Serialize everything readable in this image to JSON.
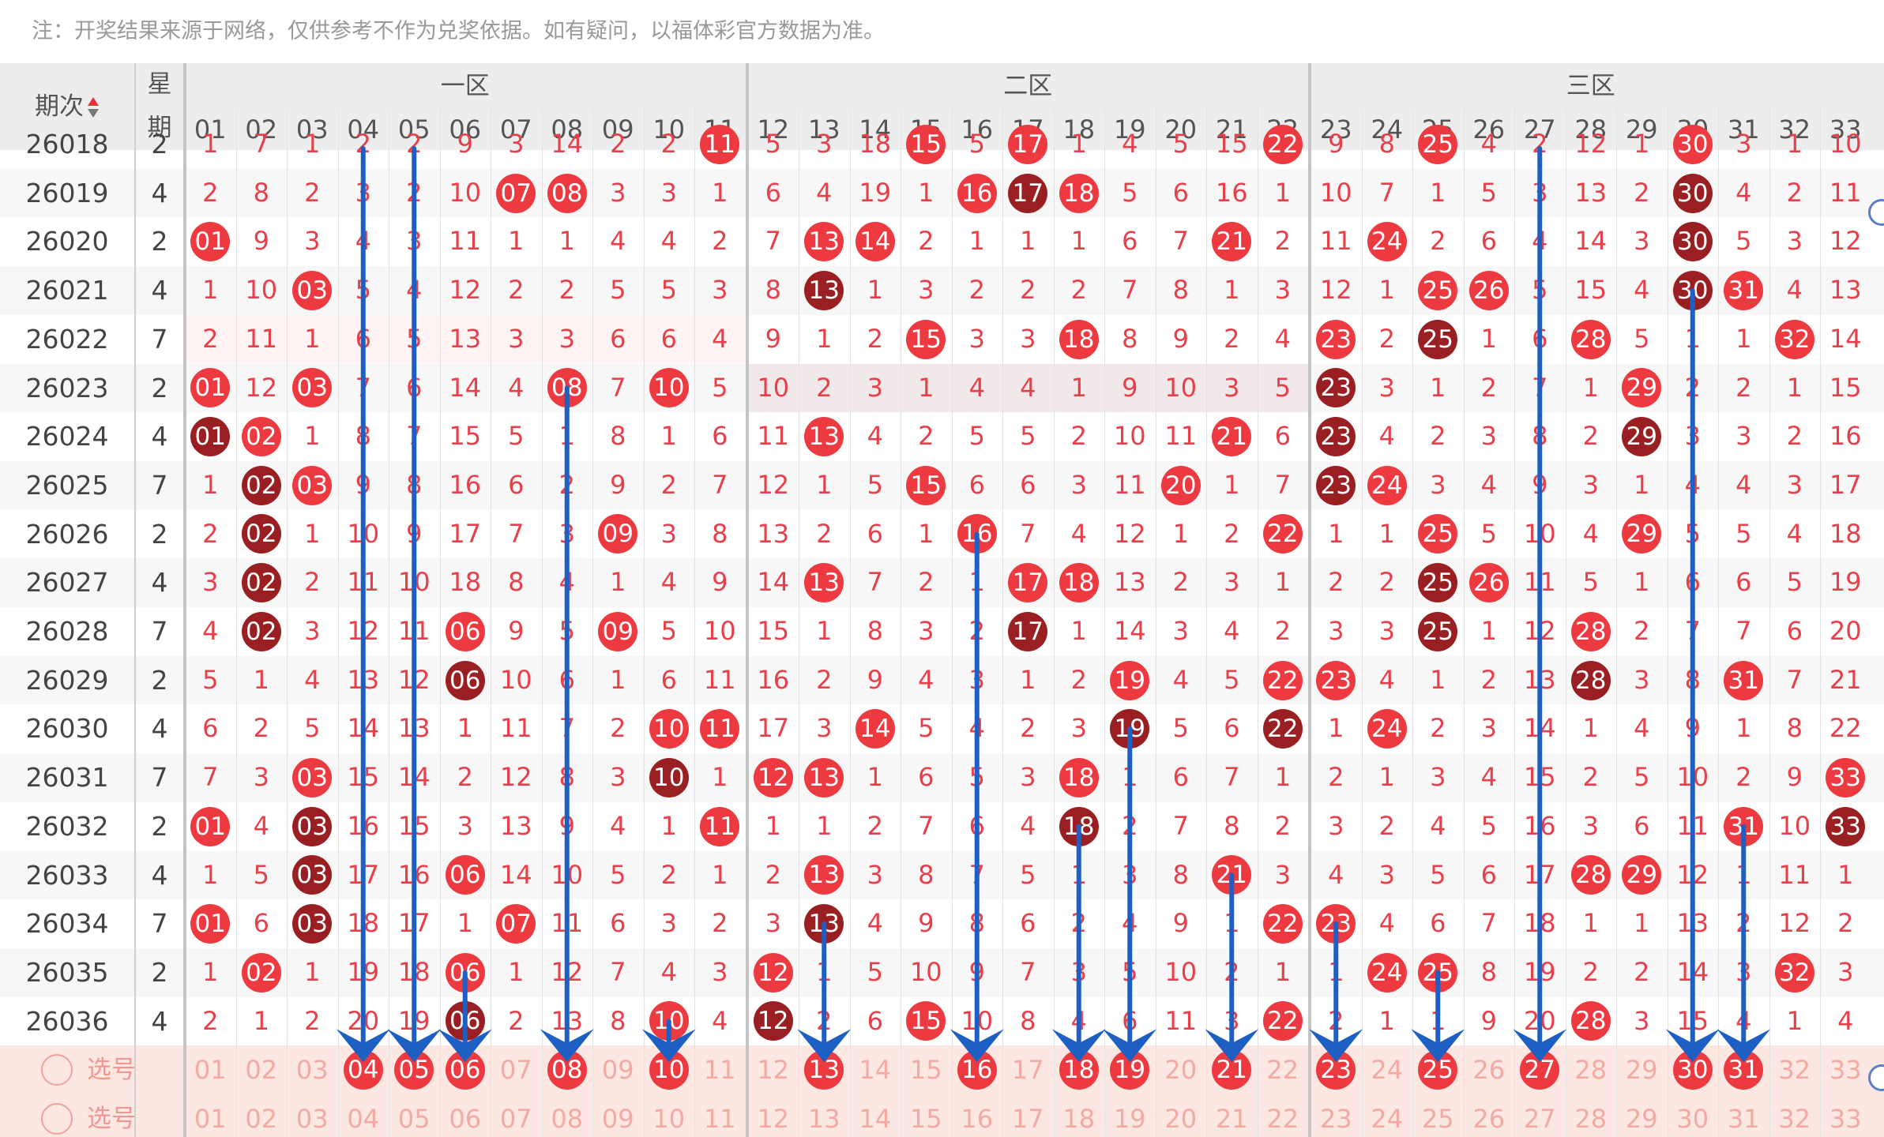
{
  "note": "注：开奖结果来源于网络，仅供参考不作为兑奖依据。如有疑问，以福体彩官方数据为准。",
  "header": {
    "qici_label": "期次",
    "xingqi_label_top": "星",
    "xingqi_label_bottom": "期",
    "zones": [
      "一区",
      "二区",
      "三区"
    ],
    "numbers": [
      "01",
      "02",
      "03",
      "04",
      "05",
      "06",
      "07",
      "08",
      "09",
      "10",
      "11",
      "12",
      "13",
      "14",
      "15",
      "16",
      "17",
      "18",
      "19",
      "20",
      "21",
      "22",
      "23",
      "24",
      "25",
      "26",
      "27",
      "28",
      "29",
      "30",
      "31",
      "32",
      "33"
    ]
  },
  "rows": [
    {
      "qici": "26018",
      "xingqi": "2",
      "cells": [
        "1",
        "7",
        "1",
        "2",
        "2",
        "9",
        "3",
        "14",
        "2",
        "2",
        "11",
        "5",
        "3",
        "18",
        "15",
        "5",
        "17",
        "1",
        "4",
        "5",
        "15",
        "22",
        "9",
        "8",
        "25",
        "4",
        "2",
        "12",
        "1",
        "30",
        "3",
        "1",
        "10"
      ],
      "hits": [
        10,
        14,
        16,
        21,
        24,
        29
      ]
    },
    {
      "qici": "26019",
      "xingqi": "4",
      "cells": [
        "2",
        "8",
        "2",
        "3",
        "2",
        "10",
        "07",
        "08",
        "3",
        "3",
        "1",
        "6",
        "4",
        "19",
        "1",
        "16",
        "17",
        "18",
        "5",
        "6",
        "16",
        "1",
        "10",
        "7",
        "1",
        "5",
        "3",
        "13",
        "2",
        "30",
        "4",
        "2",
        "11"
      ],
      "hits": [
        6,
        7,
        15,
        16,
        17,
        29
      ]
    },
    {
      "qici": "26020",
      "xingqi": "2",
      "cells": [
        "01",
        "9",
        "3",
        "4",
        "3",
        "11",
        "1",
        "1",
        "4",
        "4",
        "2",
        "7",
        "13",
        "14",
        "2",
        "1",
        "1",
        "1",
        "6",
        "7",
        "21",
        "2",
        "11",
        "24",
        "2",
        "6",
        "4",
        "14",
        "3",
        "30",
        "5",
        "3",
        "12"
      ],
      "hits": [
        0,
        12,
        13,
        20,
        23,
        29
      ]
    },
    {
      "qici": "26021",
      "xingqi": "4",
      "cells": [
        "1",
        "10",
        "03",
        "5",
        "4",
        "12",
        "2",
        "2",
        "5",
        "5",
        "3",
        "8",
        "13",
        "1",
        "3",
        "2",
        "2",
        "2",
        "7",
        "8",
        "1",
        "3",
        "12",
        "1",
        "25",
        "26",
        "5",
        "15",
        "4",
        "30",
        "31",
        "4",
        "13"
      ],
      "hits": [
        2,
        12,
        24,
        25,
        29,
        30
      ]
    },
    {
      "qici": "26022",
      "xingqi": "7",
      "cells": [
        "2",
        "11",
        "1",
        "6",
        "5",
        "13",
        "3",
        "3",
        "6",
        "6",
        "4",
        "9",
        "1",
        "2",
        "15",
        "3",
        "3",
        "18",
        "8",
        "9",
        "2",
        "4",
        "23",
        "2",
        "25",
        "1",
        "6",
        "28",
        "5",
        "1",
        "1",
        "32",
        "14"
      ],
      "hits": [
        14,
        17,
        22,
        24,
        27,
        31
      ]
    },
    {
      "qici": "26023",
      "xingqi": "2",
      "cells": [
        "01",
        "12",
        "03",
        "7",
        "6",
        "14",
        "4",
        "08",
        "7",
        "10",
        "5",
        "10",
        "2",
        "3",
        "1",
        "4",
        "4",
        "1",
        "9",
        "10",
        "3",
        "5",
        "23",
        "3",
        "1",
        "2",
        "7",
        "1",
        "29",
        "2",
        "2",
        "1",
        "15"
      ],
      "hits": [
        0,
        2,
        7,
        9,
        22,
        28
      ]
    },
    {
      "qici": "26024",
      "xingqi": "4",
      "cells": [
        "01",
        "02",
        "1",
        "8",
        "7",
        "15",
        "5",
        "1",
        "8",
        "1",
        "6",
        "11",
        "13",
        "4",
        "2",
        "5",
        "5",
        "2",
        "10",
        "11",
        "21",
        "6",
        "23",
        "4",
        "2",
        "3",
        "8",
        "2",
        "29",
        "3",
        "3",
        "2",
        "16"
      ],
      "hits": [
        0,
        1,
        12,
        20,
        22,
        28
      ]
    },
    {
      "qici": "26025",
      "xingqi": "7",
      "cells": [
        "1",
        "02",
        "03",
        "9",
        "8",
        "16",
        "6",
        "2",
        "9",
        "2",
        "7",
        "12",
        "1",
        "5",
        "15",
        "6",
        "6",
        "3",
        "11",
        "20",
        "1",
        "7",
        "23",
        "24",
        "3",
        "4",
        "9",
        "3",
        "1",
        "4",
        "4",
        "3",
        "17"
      ],
      "hits": [
        1,
        2,
        14,
        19,
        22,
        23
      ]
    },
    {
      "qici": "26026",
      "xingqi": "2",
      "cells": [
        "2",
        "02",
        "1",
        "10",
        "9",
        "17",
        "7",
        "3",
        "09",
        "3",
        "8",
        "13",
        "2",
        "6",
        "1",
        "16",
        "7",
        "4",
        "12",
        "1",
        "2",
        "22",
        "1",
        "1",
        "25",
        "5",
        "10",
        "4",
        "29",
        "5",
        "5",
        "4",
        "18"
      ],
      "hits": [
        1,
        8,
        15,
        21,
        24,
        28
      ]
    },
    {
      "qici": "26027",
      "xingqi": "4",
      "cells": [
        "3",
        "02",
        "2",
        "11",
        "10",
        "18",
        "8",
        "4",
        "1",
        "4",
        "9",
        "14",
        "13",
        "7",
        "2",
        "1",
        "17",
        "18",
        "13",
        "2",
        "3",
        "1",
        "2",
        "2",
        "25",
        "26",
        "11",
        "5",
        "1",
        "6",
        "6",
        "5",
        "19"
      ],
      "hits": [
        1,
        12,
        16,
        17,
        24,
        25
      ]
    },
    {
      "qici": "26028",
      "xingqi": "7",
      "cells": [
        "4",
        "02",
        "3",
        "12",
        "11",
        "06",
        "9",
        "5",
        "09",
        "5",
        "10",
        "15",
        "1",
        "8",
        "3",
        "2",
        "17",
        "1",
        "14",
        "3",
        "4",
        "2",
        "3",
        "3",
        "25",
        "1",
        "12",
        "28",
        "2",
        "7",
        "7",
        "6",
        "20"
      ],
      "hits": [
        1,
        5,
        8,
        16,
        24,
        27
      ]
    },
    {
      "qici": "26029",
      "xingqi": "2",
      "cells": [
        "5",
        "1",
        "4",
        "13",
        "12",
        "06",
        "10",
        "6",
        "1",
        "6",
        "11",
        "16",
        "2",
        "9",
        "4",
        "3",
        "1",
        "2",
        "19",
        "4",
        "5",
        "22",
        "23",
        "4",
        "1",
        "2",
        "13",
        "28",
        "3",
        "8",
        "31",
        "7",
        "21"
      ],
      "hits": [
        5,
        18,
        21,
        22,
        27,
        30
      ]
    },
    {
      "qici": "26030",
      "xingqi": "4",
      "cells": [
        "6",
        "2",
        "5",
        "14",
        "13",
        "1",
        "11",
        "7",
        "2",
        "10",
        "11",
        "17",
        "3",
        "14",
        "5",
        "4",
        "2",
        "3",
        "19",
        "5",
        "6",
        "22",
        "1",
        "24",
        "2",
        "3",
        "14",
        "1",
        "4",
        "9",
        "1",
        "8",
        "22"
      ],
      "hits": [
        9,
        10,
        13,
        18,
        21,
        23
      ]
    },
    {
      "qici": "26031",
      "xingqi": "7",
      "cells": [
        "7",
        "3",
        "03",
        "15",
        "14",
        "2",
        "12",
        "8",
        "3",
        "10",
        "1",
        "12",
        "13",
        "1",
        "6",
        "5",
        "3",
        "18",
        "1",
        "6",
        "7",
        "1",
        "2",
        "1",
        "3",
        "4",
        "15",
        "2",
        "5",
        "10",
        "2",
        "9",
        "33"
      ],
      "hits": [
        2,
        9,
        11,
        12,
        17,
        32
      ]
    },
    {
      "qici": "26032",
      "xingqi": "2",
      "cells": [
        "01",
        "4",
        "03",
        "16",
        "15",
        "3",
        "13",
        "9",
        "4",
        "1",
        "11",
        "1",
        "1",
        "2",
        "7",
        "6",
        "4",
        "18",
        "2",
        "7",
        "8",
        "2",
        "3",
        "2",
        "4",
        "5",
        "16",
        "3",
        "6",
        "11",
        "31",
        "10",
        "33"
      ],
      "hits": [
        0,
        2,
        10,
        17,
        30,
        32
      ]
    },
    {
      "qici": "26033",
      "xingqi": "4",
      "cells": [
        "1",
        "5",
        "03",
        "17",
        "16",
        "06",
        "14",
        "10",
        "5",
        "2",
        "1",
        "2",
        "13",
        "3",
        "8",
        "7",
        "5",
        "1",
        "3",
        "8",
        "21",
        "3",
        "4",
        "3",
        "5",
        "6",
        "17",
        "28",
        "29",
        "12",
        "1",
        "11",
        "1"
      ],
      "hits": [
        2,
        5,
        12,
        20,
        27,
        28
      ]
    },
    {
      "qici": "26034",
      "xingqi": "7",
      "cells": [
        "01",
        "6",
        "03",
        "18",
        "17",
        "1",
        "07",
        "11",
        "6",
        "3",
        "2",
        "3",
        "13",
        "4",
        "9",
        "8",
        "6",
        "2",
        "4",
        "9",
        "1",
        "22",
        "23",
        "4",
        "6",
        "7",
        "18",
        "1",
        "1",
        "13",
        "2",
        "12",
        "2"
      ],
      "hits": [
        0,
        2,
        6,
        12,
        21,
        22
      ]
    },
    {
      "qici": "26035",
      "xingqi": "2",
      "cells": [
        "1",
        "02",
        "1",
        "19",
        "18",
        "06",
        "1",
        "12",
        "7",
        "4",
        "3",
        "12",
        "1",
        "5",
        "10",
        "9",
        "7",
        "3",
        "5",
        "10",
        "2",
        "1",
        "1",
        "24",
        "25",
        "8",
        "19",
        "2",
        "2",
        "14",
        "3",
        "32",
        "3"
      ],
      "hits": [
        1,
        5,
        11,
        23,
        24,
        31
      ]
    },
    {
      "qici": "26036",
      "xingqi": "4",
      "cells": [
        "2",
        "1",
        "2",
        "20",
        "19",
        "06",
        "2",
        "13",
        "8",
        "10",
        "4",
        "12",
        "2",
        "6",
        "15",
        "10",
        "8",
        "4",
        "6",
        "11",
        "3",
        "22",
        "2",
        "1",
        "1",
        "9",
        "20",
        "28",
        "3",
        "15",
        "4",
        "1",
        "4"
      ],
      "hits": [
        5,
        9,
        11,
        14,
        21,
        27
      ]
    }
  ],
  "select_rows": [
    {
      "label": "选号",
      "picked": [
        "04",
        "05",
        "06",
        "08",
        "10",
        "13",
        "16",
        "18",
        "19",
        "21",
        "23",
        "25",
        "27",
        "30",
        "31"
      ]
    },
    {
      "label": "选号",
      "picked": []
    }
  ],
  "colors": {
    "red": "#ec3a40",
    "dark_red": "#9a1f22",
    "arrow": "#1e5fc4",
    "select_bg": "#fde7e3"
  }
}
